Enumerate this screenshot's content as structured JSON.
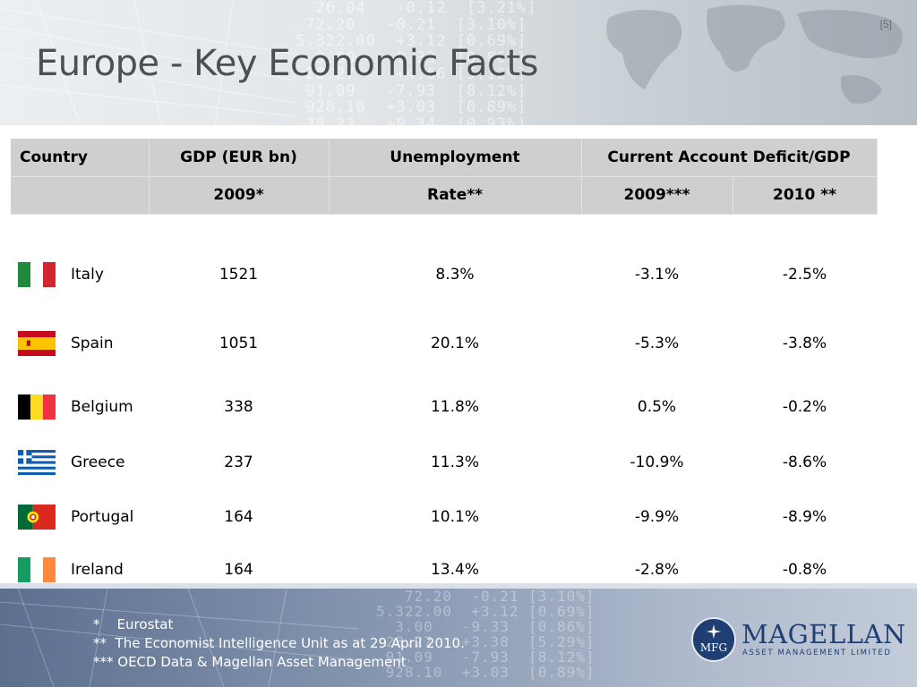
{
  "page_number": "[5]",
  "title": "Europe - Key Economic Facts",
  "table": {
    "headers": {
      "country": "Country",
      "gdp": "GDP (EUR bn)",
      "unemployment": "Unemployment",
      "current_account": "Current Account Deficit/GDP"
    },
    "subheaders": {
      "gdp_year": "2009*",
      "unemployment_rate": "Rate**",
      "ca_2009": "2009***",
      "ca_2010": "2010 **"
    },
    "rows": [
      {
        "country": "Italy",
        "flag": "italy-flag",
        "gdp": "1521",
        "unemployment": "8.3%",
        "ca_2009": "-3.1%",
        "ca_2010": "-2.5%"
      },
      {
        "country": "Spain",
        "flag": "spain-flag",
        "gdp": "1051",
        "unemployment": "20.1%",
        "ca_2009": "-5.3%",
        "ca_2010": "-3.8%"
      },
      {
        "country": "Belgium",
        "flag": "belgium-flag",
        "gdp": "338",
        "unemployment": "11.8%",
        "ca_2009": "0.5%",
        "ca_2010": "-0.2%"
      },
      {
        "country": "Greece",
        "flag": "greece-flag",
        "gdp": "237",
        "unemployment": "11.3%",
        "ca_2009": "-10.9%",
        "ca_2010": "-8.6%"
      },
      {
        "country": "Portugal",
        "flag": "portugal-flag",
        "gdp": "164",
        "unemployment": "10.1%",
        "ca_2009": "-9.9%",
        "ca_2010": "-8.9%"
      },
      {
        "country": "Ireland",
        "flag": "ireland-flag",
        "gdp": "164",
        "unemployment": "13.4%",
        "ca_2009": "-2.8%",
        "ca_2010": "-0.8%"
      }
    ]
  },
  "footnotes": [
    "*    Eurostat",
    "**  The Economist Intelligence Unit as at 29 April 2010.",
    "*** OECD Data & Magellan Asset Management"
  ],
  "logo": {
    "mark": "MFG",
    "name": "MAGELLAN",
    "tagline": "ASSET MANAGEMENT LIMITED"
  },
  "colors": {
    "header_cell": "#cfcfcf",
    "title_text": "#4d4f52",
    "logo_navy": "#1f3f73",
    "footer_blue": "#5c6f8f"
  }
}
